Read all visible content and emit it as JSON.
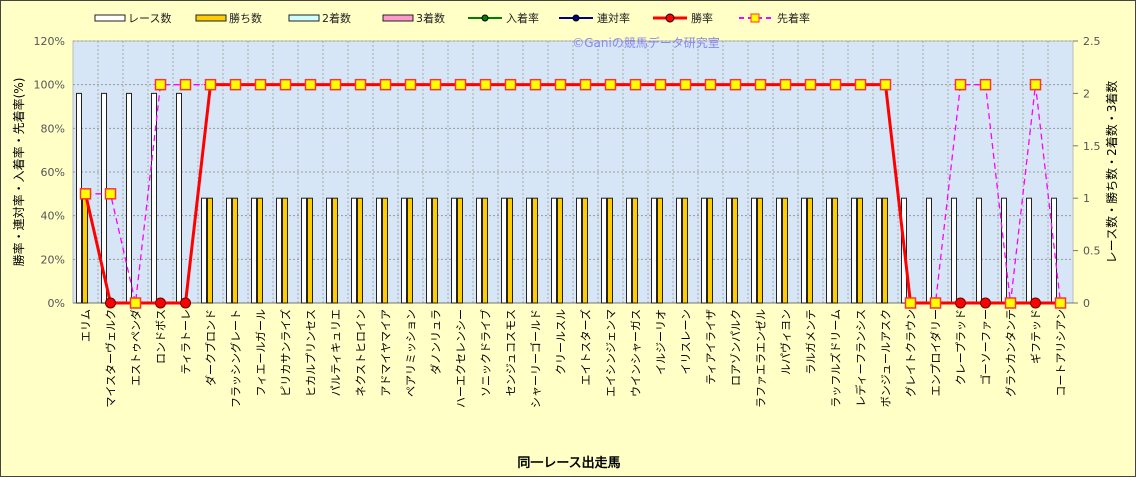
{
  "chart_data": {
    "type": "bar+line",
    "title": "",
    "watermark": "©Ganiの競馬データ研究室",
    "xlabel": "同一レース出走馬",
    "ylabel_left": "勝率・連対率・入着率・先着率(%)",
    "ylabel_right": "レース数・勝ち数・2着数・3着数",
    "ylim_left": [
      0,
      120
    ],
    "ylim_right": [
      0,
      2.5
    ],
    "yticks_left": [
      "0%",
      "20%",
      "40%",
      "60%",
      "80%",
      "100%",
      "120%"
    ],
    "yticks_right": [
      "0",
      "0.5",
      "1",
      "1.5",
      "2",
      "2.5"
    ],
    "legend_position": "top",
    "legend": [
      "レース数",
      "勝ち数",
      "2着数",
      "3着数",
      "入着率",
      "連対率",
      "勝率",
      "先着率"
    ],
    "colors": {
      "races": "#FFFFFF",
      "wins": "#FFCC00",
      "second": "#CCFFFF",
      "third": "#FF99CC",
      "place_rate": "#008000",
      "rentai_rate": "#000080",
      "win_rate": "#FF0000",
      "senchaku_rate": "#FF00FF",
      "plot_bg": "#D6E6F6",
      "bg": "#FFFFC6"
    },
    "categories": [
      "エリム",
      "マイスターヴェルク",
      "エストゥペンダ",
      "ロンドボス",
      "ティラトーレ",
      "ダークブロンド",
      "フラッシングレート",
      "フィエールガール",
      "ピリカサンライズ",
      "ヒカルプリンセス",
      "パルティキュリエ",
      "ネクストヒロイン",
      "アドマイヤマイア",
      "ペアリミッション",
      "ダノンリュラ",
      "ハーエクセレンシー",
      "ソニックドライブ",
      "センジュコスモス",
      "シャーリーゴールド",
      "クリールスル",
      "エイトスターズ",
      "エイシンジェンマ",
      "ウインシャーガス",
      "イルジーリオ",
      "イリスレーン",
      "ティアイライザ",
      "ロアゾンパルク",
      "ラファエラエンゼル",
      "ルパヴィヨン",
      "ラルガメンテ",
      "ラッフルズドリーム",
      "レディーフランシス",
      "ボンジュールアスク",
      "グレイトクラウン",
      "エンプロイダリー",
      "クレープラッド",
      "ゴーソーファー",
      "グランカンタンテ",
      "ギフテッド",
      "コートアリシアン"
    ],
    "series": [
      {
        "name": "レース数",
        "axis": "right",
        "values": [
          2,
          2,
          2,
          2,
          2,
          1,
          1,
          1,
          1,
          1,
          1,
          1,
          1,
          1,
          1,
          1,
          1,
          1,
          1,
          1,
          1,
          1,
          1,
          1,
          1,
          1,
          1,
          1,
          1,
          1,
          1,
          1,
          1,
          1,
          1,
          1,
          1,
          1,
          1,
          1
        ]
      },
      {
        "name": "勝ち数",
        "axis": "right",
        "values": [
          1,
          0,
          0,
          0,
          0,
          1,
          1,
          1,
          1,
          1,
          1,
          1,
          1,
          1,
          1,
          1,
          1,
          1,
          1,
          1,
          1,
          1,
          1,
          1,
          1,
          1,
          1,
          1,
          1,
          1,
          1,
          1,
          1,
          0,
          0,
          0,
          0,
          0,
          0,
          0
        ]
      },
      {
        "name": "2着数",
        "axis": "right",
        "values": [
          0,
          0,
          0,
          0,
          0,
          0,
          0,
          0,
          0,
          0,
          0,
          0,
          0,
          0,
          0,
          0,
          0,
          0,
          0,
          0,
          0,
          0,
          0,
          0,
          0,
          0,
          0,
          0,
          0,
          0,
          0,
          0,
          0,
          0,
          0,
          0,
          0,
          0,
          0,
          0
        ]
      },
      {
        "name": "3着数",
        "axis": "right",
        "values": [
          0,
          0,
          0,
          0,
          0,
          0,
          0,
          0,
          0,
          0,
          0,
          0,
          0,
          0,
          0,
          0,
          0,
          0,
          0,
          0,
          0,
          0,
          0,
          0,
          0,
          0,
          0,
          0,
          0,
          0,
          0,
          0,
          0,
          0,
          0,
          0,
          0,
          0,
          0,
          0
        ]
      },
      {
        "name": "入着率",
        "axis": "left",
        "values": [
          50,
          0,
          0,
          0,
          0,
          100,
          100,
          100,
          100,
          100,
          100,
          100,
          100,
          100,
          100,
          100,
          100,
          100,
          100,
          100,
          100,
          100,
          100,
          100,
          100,
          100,
          100,
          100,
          100,
          100,
          100,
          100,
          100,
          0,
          0,
          0,
          0,
          0,
          0,
          0
        ]
      },
      {
        "name": "連対率",
        "axis": "left",
        "values": [
          50,
          0,
          0,
          0,
          0,
          100,
          100,
          100,
          100,
          100,
          100,
          100,
          100,
          100,
          100,
          100,
          100,
          100,
          100,
          100,
          100,
          100,
          100,
          100,
          100,
          100,
          100,
          100,
          100,
          100,
          100,
          100,
          100,
          0,
          0,
          0,
          0,
          0,
          0,
          0
        ]
      },
      {
        "name": "勝率",
        "axis": "left",
        "values": [
          50,
          0,
          0,
          0,
          0,
          100,
          100,
          100,
          100,
          100,
          100,
          100,
          100,
          100,
          100,
          100,
          100,
          100,
          100,
          100,
          100,
          100,
          100,
          100,
          100,
          100,
          100,
          100,
          100,
          100,
          100,
          100,
          100,
          0,
          0,
          0,
          0,
          0,
          0,
          0
        ]
      },
      {
        "name": "先着率",
        "axis": "left",
        "values": [
          50,
          50,
          0,
          100,
          100,
          100,
          100,
          100,
          100,
          100,
          100,
          100,
          100,
          100,
          100,
          100,
          100,
          100,
          100,
          100,
          100,
          100,
          100,
          100,
          100,
          100,
          100,
          100,
          100,
          100,
          100,
          100,
          100,
          0,
          0,
          100,
          100,
          0,
          100,
          0
        ]
      }
    ]
  }
}
